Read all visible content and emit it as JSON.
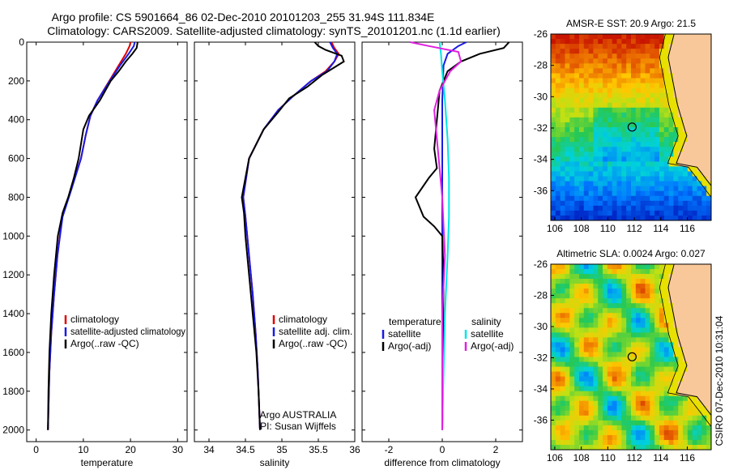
{
  "header": {
    "title_line1": "Argo profile: CS 5901664_86 02-Dec-2010 20101203_255 31.94S 111.834E",
    "title_line2": "Climatology: CARS2009. Satellite-adjusted climatology: synTS_20101201.nc (1.1d earlier)"
  },
  "colors": {
    "climatology": "#e00000",
    "satellite": "#1a1ae6",
    "argo": "#000000",
    "sal_satellite": "#00e5e5",
    "sal_argo": "#e020e0"
  },
  "chart_data": [
    {
      "type": "line",
      "panel": "temperature",
      "xlabel": "temperature",
      "ylabel": "",
      "xlim": [
        -2,
        32
      ],
      "ylim": [
        2060,
        0
      ],
      "xticks": [
        "0",
        "10",
        "20",
        "30"
      ],
      "yticks": [
        "0",
        "200",
        "400",
        "600",
        "800",
        "1000",
        "1200",
        "1400",
        "1600",
        "1800",
        "2000"
      ],
      "legend": [
        "climatology",
        "satellite-adjusted climatology",
        "Argo(..raw -QC)"
      ],
      "series": [
        {
          "name": "climatology",
          "x": [
            20.0,
            19.8,
            19.0,
            17.5,
            15.5,
            13.0,
            11.5,
            10.5,
            9.5,
            7.5,
            5.5,
            4.5,
            3.8,
            3.2,
            2.8,
            2.6,
            2.5
          ],
          "y": [
            0,
            20,
            60,
            120,
            200,
            300,
            380,
            480,
            600,
            750,
            900,
            1100,
            1300,
            1500,
            1700,
            1900,
            2000
          ]
        },
        {
          "name": "satellite-adjusted climatology",
          "x": [
            20.9,
            20.7,
            19.6,
            17.8,
            15.6,
            13.0,
            11.5,
            10.5,
            9.5,
            7.6,
            5.6,
            4.5,
            3.8,
            3.2,
            2.8,
            2.6,
            2.5
          ],
          "y": [
            0,
            20,
            60,
            120,
            200,
            300,
            380,
            480,
            600,
            750,
            900,
            1100,
            1300,
            1500,
            1700,
            1900,
            2000
          ]
        },
        {
          "name": "Argo(..raw -QC)",
          "x": [
            21.5,
            21.3,
            20.4,
            19.0,
            17.5,
            15.8,
            13.5,
            11.2,
            10.0,
            9.0,
            8.0,
            6.8,
            5.6,
            4.6,
            3.8,
            3.2,
            2.8,
            2.6,
            2.5
          ],
          "y": [
            0,
            30,
            60,
            100,
            150,
            200,
            300,
            380,
            450,
            600,
            700,
            800,
            880,
            1000,
            1200,
            1400,
            1600,
            1800,
            2000
          ]
        }
      ]
    },
    {
      "type": "line",
      "panel": "salinity",
      "xlabel": "salinity",
      "ylabel": "",
      "xlim": [
        33.8,
        36.0
      ],
      "ylim": [
        2060,
        0
      ],
      "xticks": [
        "34",
        "34.5",
        "35",
        "35.5",
        "36"
      ],
      "legend": [
        "climatology",
        "satellite adj. clim.",
        "Argo(..raw -QC)"
      ],
      "annotation": [
        "Argo AUSTRALIA",
        "PI: Susan Wijffels"
      ],
      "series": [
        {
          "name": "climatology",
          "x": [
            35.68,
            35.72,
            35.78,
            35.72,
            35.6,
            35.4,
            35.15,
            34.95,
            34.75,
            34.55,
            34.47,
            34.5,
            34.55,
            34.6,
            34.64,
            34.67,
            34.69,
            34.7
          ],
          "y": [
            0,
            30,
            60,
            100,
            150,
            200,
            280,
            350,
            450,
            600,
            800,
            900,
            1100,
            1300,
            1500,
            1700,
            1900,
            2000
          ]
        },
        {
          "name": "satellite adj. clim.",
          "x": [
            35.66,
            35.7,
            35.76,
            35.72,
            35.62,
            35.4,
            35.15,
            34.95,
            34.75,
            34.55,
            34.47,
            34.5,
            34.55,
            34.6,
            34.64,
            34.67,
            34.69,
            34.7
          ],
          "y": [
            0,
            30,
            60,
            100,
            150,
            200,
            280,
            350,
            450,
            600,
            800,
            900,
            1100,
            1300,
            1500,
            1700,
            1900,
            2000
          ]
        },
        {
          "name": "Argo(..raw -QC)",
          "x": [
            35.45,
            35.5,
            35.6,
            35.82,
            35.85,
            35.55,
            35.35,
            35.1,
            34.95,
            34.75,
            34.55,
            34.45,
            34.48,
            34.5,
            34.55,
            34.6,
            34.65,
            34.68,
            34.7
          ],
          "y": [
            0,
            20,
            40,
            70,
            100,
            170,
            230,
            290,
            360,
            450,
            600,
            800,
            880,
            1000,
            1200,
            1400,
            1600,
            1800,
            2000
          ]
        }
      ]
    },
    {
      "type": "line",
      "panel": "difference",
      "xlabel": "difference from climatology",
      "ylabel": "",
      "xlim": [
        -3,
        3
      ],
      "ylim": [
        2060,
        0
      ],
      "xticks": [
        "-2",
        "0",
        "2"
      ],
      "legend_temperature_title": "temperature",
      "legend_salinity_title": "salinity",
      "legend": [
        "satellite",
        "Argo(-adj)",
        "satellite",
        "Argo(-adj)"
      ],
      "series": [
        {
          "name": "temperature satellite",
          "x": [
            0.9,
            0.6,
            0.2,
            0.05,
            0.0,
            0.0,
            0.0,
            0.0
          ],
          "y": [
            0,
            20,
            60,
            120,
            300,
            800,
            1400,
            2000
          ]
        },
        {
          "name": "temperature Argo(-adj)",
          "x": [
            2.5,
            2.3,
            1.4,
            0.7,
            0.2,
            -0.1,
            -0.2,
            -0.3,
            -0.2,
            -0.5,
            -1.0,
            -0.7,
            -0.3,
            0.0,
            0.05,
            0.03,
            0.02,
            0.0
          ],
          "y": [
            0,
            30,
            60,
            100,
            150,
            250,
            400,
            550,
            650,
            700,
            800,
            900,
            950,
            1000,
            1200,
            1500,
            1800,
            2000
          ]
        },
        {
          "name": "salinity satellite",
          "x": [
            -0.1,
            -0.05,
            0.0,
            0.1,
            0.2,
            0.25,
            0.25,
            0.2,
            0.1,
            0.05,
            0.0
          ],
          "y": [
            0,
            60,
            150,
            300,
            500,
            700,
            900,
            1100,
            1400,
            1700,
            2000
          ]
        },
        {
          "name": "salinity Argo(-adj)",
          "x": [
            -1.2,
            -0.5,
            0.6,
            0.7,
            0.3,
            -0.1,
            -0.3,
            -0.2,
            -0.1,
            0.0,
            0.05,
            0.1,
            0.0,
            0.0
          ],
          "y": [
            0,
            20,
            50,
            100,
            150,
            250,
            350,
            500,
            650,
            800,
            950,
            1100,
            1400,
            2000
          ]
        }
      ]
    },
    {
      "type": "heatmap",
      "panel": "sst_map",
      "title": "AMSR-E SST: 20.9  Argo: 21.5",
      "xlim": [
        105.7,
        117.8
      ],
      "ylim": [
        -37.9,
        -26
      ],
      "xticks": [
        "106",
        "108",
        "110",
        "112",
        "114",
        "116"
      ],
      "yticks": [
        "-26",
        "-28",
        "-30",
        "-32",
        "-34",
        "-36"
      ],
      "marker": {
        "lon": 111.834,
        "lat": -31.94
      }
    },
    {
      "type": "heatmap",
      "panel": "sla_map",
      "title": "Altimetric SLA: 0.0024  Argo: 0.027",
      "xlim": [
        105.7,
        117.8
      ],
      "ylim": [
        -37.9,
        -26
      ],
      "xticks": [
        "106",
        "108",
        "110",
        "112",
        "114",
        "116"
      ],
      "yticks": [
        "-26",
        "-28",
        "-30",
        "-32",
        "-34",
        "-36"
      ],
      "marker": {
        "lon": 111.834,
        "lat": -31.94
      }
    }
  ],
  "footer": {
    "timestamp": "CSIRO 07-Dec-2010 10:31:04"
  }
}
